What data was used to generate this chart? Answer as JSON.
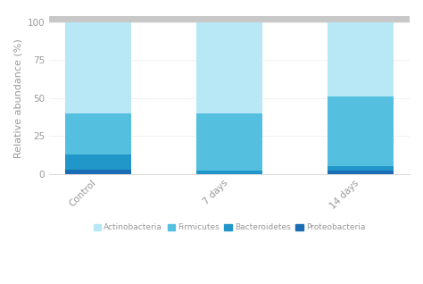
{
  "categories": [
    "Control",
    "7 days",
    "14 days"
  ],
  "series_order": [
    "Proteobacteria",
    "Bacteroidetes",
    "Firmicutes",
    "Actinobacteria"
  ],
  "series": {
    "Proteobacteria": [
      3,
      0,
      2
    ],
    "Bacteroidetes": [
      10,
      2,
      3
    ],
    "Firmicutes": [
      27,
      38,
      46
    ],
    "Actinobacteria": [
      60,
      60,
      49
    ]
  },
  "colors": {
    "Actinobacteria": "#b8e8f5",
    "Firmicutes": "#55bfe0",
    "Bacteroidetes": "#2196c8",
    "Proteobacteria": "#1a6db5"
  },
  "legend_order": [
    "Actinobacteria",
    "Firmicutes",
    "Bacteroidetes",
    "Proteobacteria"
  ],
  "ylabel": "Relative abundance (%)",
  "ylim": [
    0,
    100
  ],
  "yticks": [
    0,
    25,
    50,
    75,
    100
  ],
  "bar_width": 0.5,
  "background_color": "#ffffff",
  "top_band_color": "#c8c8c8"
}
